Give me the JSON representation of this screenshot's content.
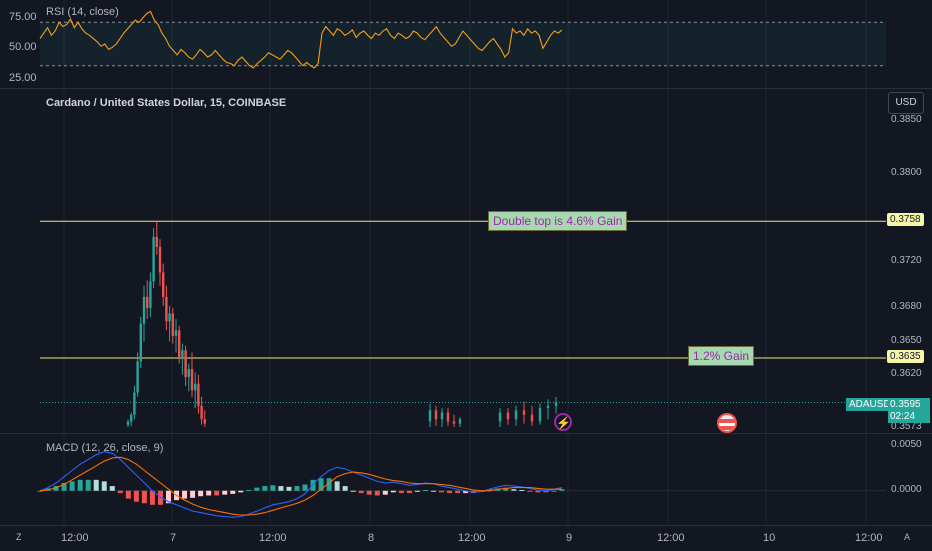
{
  "rsi_panel": {
    "label": "RSI (14, close)",
    "ticks": [
      "75.00",
      "50.00",
      "25.00"
    ],
    "color": "#f59c1a"
  },
  "main_panel": {
    "title": "Cardano / United States Dollar, 15, COINBASE",
    "currency_button": "USD",
    "price_ticks": [
      "0.3850",
      "0.3800",
      "0.3720",
      "0.3680",
      "0.3650",
      "0.3620"
    ],
    "bottom_tick": "0.3573",
    "levels": [
      {
        "price": "0.3758",
        "label": "Double top is 4.6% Gain"
      },
      {
        "price": "0.3635",
        "label": "1.2% Gain"
      }
    ],
    "current": {
      "symbol": "ADAUSD",
      "price": "0.3595",
      "countdown": "02:24"
    },
    "colors": {
      "up": "#26a69a",
      "down": "#ef5350",
      "level": "#e8e882",
      "annotation_bg": "#a8d8b0",
      "annotation_text": "#9c27b0"
    }
  },
  "macd_panel": {
    "label": "MACD (12, 26, close, 9)",
    "ticks": [
      "0.0050",
      "0.0000"
    ],
    "macd_color": "#2962ff",
    "signal_color": "#ff6d00"
  },
  "time_axis": {
    "labels": [
      "12:00",
      "7",
      "12:00",
      "8",
      "12:00",
      "9",
      "12:00",
      "10",
      "12:00"
    ]
  },
  "corner": {
    "left": "Z",
    "right": "A"
  },
  "chart_data": [
    {
      "type": "line",
      "title": "RSI (14, close)",
      "ylim": [
        15,
        85
      ],
      "guides": [
        70,
        30
      ],
      "y": [
        55,
        60,
        65,
        58,
        62,
        70,
        66,
        68,
        73,
        65,
        70,
        64,
        60,
        58,
        55,
        52,
        48,
        50,
        45,
        47,
        50,
        55,
        60,
        64,
        68,
        72,
        70,
        74,
        78,
        80,
        72,
        68,
        60,
        55,
        48,
        44,
        40,
        45,
        42,
        38,
        36,
        40,
        45,
        42,
        38,
        40,
        44,
        40,
        36,
        33,
        32,
        30,
        35,
        38,
        34,
        30,
        28,
        32,
        35,
        38,
        42,
        40,
        38,
        36,
        40,
        44,
        42,
        38,
        34,
        30,
        33,
        30,
        28,
        32,
        60,
        66,
        62,
        58,
        64,
        62,
        58,
        60,
        63,
        56,
        60,
        62,
        58,
        55,
        60,
        58,
        62,
        64,
        58,
        55,
        60,
        58,
        55,
        57,
        62,
        60,
        56,
        54,
        58,
        62,
        66,
        60,
        56,
        52,
        48,
        50,
        56,
        62,
        58,
        54,
        50,
        46,
        44,
        48,
        52,
        55,
        50,
        45,
        38,
        42,
        64,
        60,
        62,
        58,
        64,
        60,
        62,
        58,
        46,
        52,
        58,
        62,
        60,
        63
      ]
    },
    {
      "type": "candlestick",
      "title": "Cardano / United States Dollar, 15, COINBASE",
      "ylim": [
        0.3573,
        0.385
      ],
      "horizontal_levels": [
        0.3758,
        0.3635
      ],
      "last_price": 0.3595,
      "candles": [
        [
          0.3575,
          0.358,
          0.3573,
          0.3578
        ],
        [
          0.3578,
          0.3586,
          0.3574,
          0.3584
        ],
        [
          0.3584,
          0.361,
          0.358,
          0.3604
        ],
        [
          0.3604,
          0.364,
          0.36,
          0.3632
        ],
        [
          0.3632,
          0.3672,
          0.3626,
          0.3666
        ],
        [
          0.3666,
          0.37,
          0.365,
          0.369
        ],
        [
          0.369,
          0.3705,
          0.367,
          0.368
        ],
        [
          0.368,
          0.3712,
          0.3672,
          0.3704
        ],
        [
          0.3704,
          0.3752,
          0.3698,
          0.3744
        ],
        [
          0.3744,
          0.3758,
          0.3728,
          0.3735
        ],
        [
          0.3735,
          0.3742,
          0.37,
          0.3712
        ],
        [
          0.3712,
          0.372,
          0.3682,
          0.369
        ],
        [
          0.369,
          0.37,
          0.366,
          0.3668
        ],
        [
          0.3668,
          0.3682,
          0.365,
          0.3675
        ],
        [
          0.3675,
          0.368,
          0.3648,
          0.3655
        ],
        [
          0.3655,
          0.367,
          0.364,
          0.366
        ],
        [
          0.366,
          0.3664,
          0.363,
          0.3636
        ],
        [
          0.3636,
          0.3648,
          0.362,
          0.3642
        ],
        [
          0.3642,
          0.3646,
          0.361,
          0.3618
        ],
        [
          0.3618,
          0.363,
          0.3605,
          0.3625
        ],
        [
          0.3625,
          0.364,
          0.36,
          0.3606
        ],
        [
          0.3606,
          0.3622,
          0.359,
          0.3612
        ],
        [
          0.3612,
          0.362,
          0.3585,
          0.3592
        ],
        [
          0.3592,
          0.36,
          0.3575,
          0.358
        ],
        [
          0.358,
          0.3588,
          0.3573,
          0.3576
        ],
        [
          0.3578,
          0.3594,
          0.3573,
          0.3588
        ],
        [
          0.3588,
          0.3592,
          0.3574,
          0.358
        ],
        [
          0.358,
          0.359,
          0.3573,
          0.3586
        ],
        [
          0.3586,
          0.359,
          0.3574,
          0.3578
        ],
        [
          0.3578,
          0.3584,
          0.3573,
          0.3576
        ],
        [
          0.3576,
          0.3582,
          0.3573,
          0.358
        ],
        [
          0.3578,
          0.359,
          0.3573,
          0.3586
        ],
        [
          0.3586,
          0.359,
          0.3575,
          0.358
        ],
        [
          0.358,
          0.3592,
          0.3574,
          0.3588
        ],
        [
          0.3588,
          0.3596,
          0.3576,
          0.3584
        ],
        [
          0.3584,
          0.3592,
          0.3574,
          0.3578
        ],
        [
          0.3578,
          0.3594,
          0.3575,
          0.359
        ],
        [
          0.359,
          0.3598,
          0.358,
          0.3592
        ],
        [
          0.3592,
          0.36,
          0.3585,
          0.3595
        ]
      ]
    },
    {
      "type": "line",
      "title": "MACD (12, 26, close, 9)",
      "ylim": [
        -0.004,
        0.0065
      ],
      "macd": [
        0.0,
        0.0004,
        0.001,
        0.0018,
        0.0026,
        0.0034,
        0.004,
        0.0046,
        0.005,
        0.0048,
        0.004,
        0.003,
        0.002,
        0.001,
        0.0,
        -0.0008,
        -0.0014,
        -0.0018,
        -0.0022,
        -0.0026,
        -0.0028,
        -0.003,
        -0.0032,
        -0.0033,
        -0.0034,
        -0.0033,
        -0.003,
        -0.0026,
        -0.0022,
        -0.0018,
        -0.0016,
        -0.0014,
        -0.001,
        -0.0004,
        0.0008,
        0.0018,
        0.0026,
        0.003,
        0.0028,
        0.0024,
        0.002,
        0.0016,
        0.0012,
        0.001,
        0.0011,
        0.0009,
        0.0007,
        0.0008,
        0.001,
        0.0009,
        0.0006,
        0.0004,
        0.0002,
        0.0,
        -0.0002,
        -0.0001,
        0.0002,
        0.0005,
        0.0007,
        0.0006,
        0.0005,
        0.0003,
        0.0001,
        0.0,
        0.0002,
        0.0004
      ],
      "signal": [
        0.0,
        0.0001,
        0.0004,
        0.0008,
        0.0014,
        0.002,
        0.0026,
        0.0032,
        0.0038,
        0.0042,
        0.0043,
        0.004,
        0.0034,
        0.0026,
        0.0018,
        0.001,
        0.0002,
        -0.0006,
        -0.0012,
        -0.0017,
        -0.0021,
        -0.0024,
        -0.0026,
        -0.0028,
        -0.003,
        -0.0031,
        -0.0031,
        -0.003,
        -0.0028,
        -0.0025,
        -0.0022,
        -0.0019,
        -0.0016,
        -0.0012,
        -0.0006,
        0.0002,
        0.001,
        0.0018,
        0.0022,
        0.0024,
        0.0023,
        0.0021,
        0.0018,
        0.0015,
        0.0013,
        0.0012,
        0.001,
        0.0009,
        0.0009,
        0.0009,
        0.0008,
        0.0007,
        0.0005,
        0.0003,
        0.0001,
        0.0,
        0.0,
        0.0002,
        0.0003,
        0.0004,
        0.0004,
        0.0004,
        0.0003,
        0.0002,
        0.0002,
        0.0002
      ]
    }
  ]
}
